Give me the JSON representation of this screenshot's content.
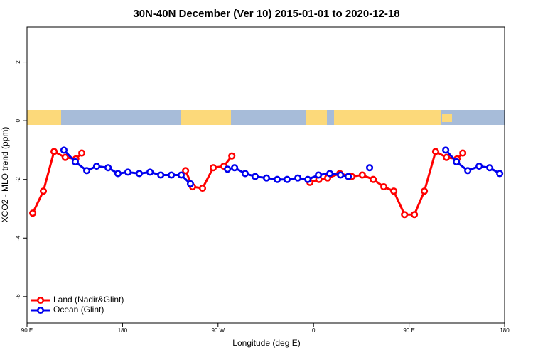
{
  "chart_data": {
    "type": "line",
    "title": "30N-40N December (Ver 10)   2015-01-01 to 2020-12-18",
    "x_label": "Longitude (deg E)",
    "y_label": "XCO2 - MLO trend (ppm)",
    "xlim": [
      90,
      540
    ],
    "ylim": [
      -6.9,
      3.2
    ],
    "xticks": [
      {
        "value": 90,
        "label": "90 E"
      },
      180,
      {
        "value": 270,
        "label": "90 W"
      },
      {
        "value": 360,
        "label": "0"
      },
      {
        "value": 450,
        "label": "90 E"
      },
      {
        "value": 540,
        "label": "180"
      }
    ],
    "yticks": [
      -6,
      -4,
      -2,
      0,
      2
    ],
    "legend": "bottom-left",
    "series": [
      {
        "name": "Land (Nadir&Glint)",
        "color": "#ff0000",
        "x": [
          95.4,
          105.4,
          115.5,
          126,
          136,
          141.6,
          190,
          239.4,
          246,
          255.4,
          265.5,
          275.5,
          283,
          320,
          356.6,
          365,
          373.3,
          384.7,
          396,
          406,
          416.2,
          426.2,
          435.6,
          445.7,
          455,
          464.4,
          475,
          485.2,
          495.2,
          500.6
        ],
        "values": [
          -3.15,
          -2.4,
          -1.05,
          -1.25,
          -1.3,
          -1.1,
          null,
          -1.7,
          -2.25,
          -2.3,
          -1.6,
          -1.55,
          -1.2,
          null,
          -2.1,
          -2.0,
          -1.95,
          -1.8,
          -1.9,
          -1.85,
          -2.0,
          -2.25,
          -2.4,
          -3.2,
          -3.2,
          -2.4,
          -1.05,
          -1.25,
          -1.3,
          -1.1
        ]
      },
      {
        "name": "Ocean (Glint)",
        "color": "#0000ee",
        "x": [
          124.8,
          135.5,
          146.3,
          155.6,
          166.4,
          175.7,
          185.1,
          195.8,
          205.9,
          216,
          226,
          235.3,
          244,
          260,
          278.9,
          285.6,
          295.6,
          305,
          315.7,
          325.8,
          335.1,
          345.2,
          354.6,
          364.6,
          375.3,
          385.4,
          392.7,
          400,
          412.8,
          450,
          484.5,
          494.6,
          505.3,
          516,
          526,
          535.4
        ],
        "values": [
          -1.0,
          -1.4,
          -1.7,
          -1.55,
          -1.6,
          -1.8,
          -1.75,
          -1.8,
          -1.75,
          -1.85,
          -1.85,
          -1.85,
          -2.15,
          null,
          -1.65,
          -1.6,
          -1.8,
          -1.9,
          -1.95,
          -2.0,
          -2.0,
          -1.95,
          -2.0,
          -1.85,
          -1.8,
          -1.85,
          -1.9,
          null,
          -1.6,
          null,
          -1.0,
          -1.4,
          -1.7,
          -1.55,
          -1.6,
          -1.8
        ]
      }
    ]
  }
}
